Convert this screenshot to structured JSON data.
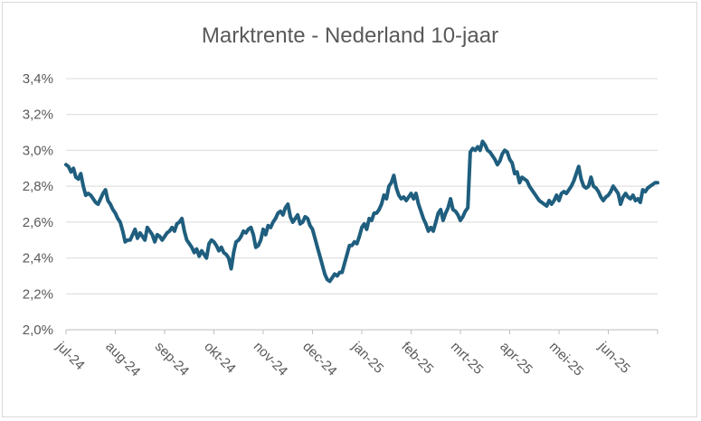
{
  "chart_data": {
    "type": "line",
    "title": "Marktrente - Nederland 10-jaar",
    "xlabel": "",
    "ylabel": "",
    "categories": [
      "jul-24",
      "aug-24",
      "sep-24",
      "okt-24",
      "nov-24",
      "dec-24",
      "jan-25",
      "feb-25",
      "mrt-25",
      "apr-25",
      "mei-25",
      "jun-25"
    ],
    "y_tick_labels": [
      "2,0%",
      "2,2%",
      "2,4%",
      "2,6%",
      "2,8%",
      "3,0%",
      "3,2%",
      "3,4%"
    ],
    "ylim": [
      2.0,
      3.4
    ],
    "grid": true,
    "legend": "none",
    "line_color": "#1f5e7e",
    "series": [
      {
        "x": [
          0,
          0.05,
          0.1,
          0.15,
          0.2,
          0.25,
          0.3,
          0.35,
          0.4,
          0.45,
          0.5,
          0.55,
          0.6,
          0.65,
          0.7,
          0.75,
          0.8,
          0.85,
          0.9,
          0.95,
          1.0,
          1.05,
          1.1,
          1.15,
          1.2,
          1.25,
          1.3,
          1.35,
          1.4,
          1.45,
          1.5,
          1.55,
          1.6,
          1.65,
          1.7,
          1.75,
          1.8,
          1.85,
          1.9,
          1.95,
          2.0,
          2.05,
          2.1,
          2.15,
          2.2,
          2.25,
          2.3,
          2.35,
          2.4,
          2.45,
          2.5,
          2.55,
          2.6,
          2.65,
          2.7,
          2.75,
          2.8,
          2.85,
          2.9,
          2.95,
          3.0,
          3.05,
          3.1,
          3.15,
          3.2,
          3.25,
          3.3,
          3.35,
          3.4,
          3.45,
          3.5,
          3.55,
          3.6,
          3.65,
          3.7,
          3.75,
          3.8,
          3.85,
          3.9,
          3.95,
          4.0,
          4.05,
          4.1,
          4.15,
          4.2,
          4.25,
          4.3,
          4.35,
          4.4,
          4.45,
          4.5,
          4.55,
          4.6,
          4.65,
          4.7,
          4.75,
          4.8,
          4.85,
          4.9,
          4.95,
          5.0,
          5.05,
          5.1,
          5.15,
          5.2,
          5.25,
          5.3,
          5.35,
          5.4,
          5.45,
          5.5,
          5.55,
          5.6,
          5.65,
          5.7,
          5.75,
          5.8,
          5.85,
          5.9,
          5.95,
          6.0,
          6.05,
          6.1,
          6.15,
          6.2,
          6.25,
          6.3,
          6.35,
          6.4,
          6.45,
          6.5,
          6.55,
          6.6,
          6.65,
          6.7,
          6.75,
          6.8,
          6.85,
          6.9,
          6.95,
          7.0,
          7.05,
          7.1,
          7.15,
          7.2,
          7.25,
          7.3,
          7.35,
          7.4,
          7.45,
          7.5,
          7.55,
          7.6,
          7.65,
          7.7,
          7.75,
          7.8,
          7.85,
          7.9,
          7.95,
          8.0,
          8.05,
          8.1,
          8.15,
          8.2,
          8.25,
          8.3,
          8.35,
          8.4,
          8.45,
          8.5,
          8.55,
          8.6,
          8.65,
          8.7,
          8.75,
          8.8,
          8.85,
          8.9,
          8.95,
          9.0,
          9.05,
          9.1,
          9.15,
          9.2,
          9.25,
          9.3,
          9.35,
          9.4,
          9.45,
          9.5,
          9.55,
          9.6,
          9.65,
          9.7,
          9.75,
          9.8,
          9.85,
          9.9,
          9.95,
          10.0,
          10.05,
          10.1,
          10.15,
          10.2,
          10.25,
          10.3,
          10.35,
          10.4,
          10.45,
          10.5,
          10.55,
          10.6,
          10.65,
          10.7,
          10.75,
          10.8,
          10.85,
          10.9,
          10.95,
          11.0,
          11.05,
          11.1,
          11.15,
          11.2,
          11.25,
          11.3,
          11.35,
          11.4,
          11.45,
          11.5,
          11.55,
          11.6,
          11.65,
          11.7,
          11.75,
          11.8,
          11.85,
          11.9,
          11.95,
          12.0
        ],
        "values": [
          2.92,
          2.91,
          2.88,
          2.9,
          2.85,
          2.84,
          2.87,
          2.8,
          2.75,
          2.76,
          2.75,
          2.73,
          2.71,
          2.7,
          2.73,
          2.76,
          2.78,
          2.72,
          2.7,
          2.67,
          2.65,
          2.62,
          2.6,
          2.55,
          2.49,
          2.5,
          2.5,
          2.53,
          2.56,
          2.51,
          2.54,
          2.52,
          2.5,
          2.57,
          2.55,
          2.53,
          2.49,
          2.53,
          2.52,
          2.5,
          2.52,
          2.54,
          2.55,
          2.57,
          2.55,
          2.59,
          2.6,
          2.62,
          2.55,
          2.5,
          2.48,
          2.46,
          2.43,
          2.45,
          2.41,
          2.44,
          2.42,
          2.4,
          2.48,
          2.5,
          2.49,
          2.47,
          2.44,
          2.46,
          2.43,
          2.42,
          2.4,
          2.34,
          2.43,
          2.49,
          2.5,
          2.52,
          2.55,
          2.54,
          2.56,
          2.57,
          2.53,
          2.46,
          2.47,
          2.5,
          2.56,
          2.53,
          2.58,
          2.57,
          2.6,
          2.62,
          2.65,
          2.66,
          2.64,
          2.68,
          2.7,
          2.63,
          2.6,
          2.62,
          2.64,
          2.59,
          2.6,
          2.63,
          2.62,
          2.58,
          2.56,
          2.51,
          2.46,
          2.41,
          2.36,
          2.31,
          2.28,
          2.27,
          2.29,
          2.31,
          2.3,
          2.32,
          2.32,
          2.37,
          2.42,
          2.47,
          2.47,
          2.49,
          2.48,
          2.52,
          2.57,
          2.59,
          2.56,
          2.62,
          2.61,
          2.65,
          2.65,
          2.67,
          2.7,
          2.75,
          2.73,
          2.8,
          2.82,
          2.86,
          2.79,
          2.75,
          2.73,
          2.74,
          2.72,
          2.74,
          2.76,
          2.73,
          2.76,
          2.7,
          2.66,
          2.62,
          2.59,
          2.55,
          2.57,
          2.55,
          2.6,
          2.65,
          2.67,
          2.61,
          2.65,
          2.68,
          2.73,
          2.67,
          2.66,
          2.64,
          2.61,
          2.63,
          2.66,
          2.68,
          2.99,
          3.01,
          3.0,
          3.02,
          3.0,
          3.05,
          3.03,
          3.0,
          2.99,
          2.97,
          2.95,
          2.92,
          2.94,
          2.98,
          3.0,
          2.99,
          2.95,
          2.93,
          2.87,
          2.88,
          2.82,
          2.85,
          2.84,
          2.83,
          2.8,
          2.78,
          2.76,
          2.74,
          2.72,
          2.71,
          2.7,
          2.69,
          2.72,
          2.7,
          2.72,
          2.75,
          2.72,
          2.76,
          2.77,
          2.76,
          2.78,
          2.8,
          2.83,
          2.87,
          2.91,
          2.84,
          2.8,
          2.79,
          2.8,
          2.85,
          2.8,
          2.79,
          2.77,
          2.74,
          2.72,
          2.74,
          2.75,
          2.77,
          2.8,
          2.78,
          2.76,
          2.7,
          2.74,
          2.76,
          2.74,
          2.73,
          2.75,
          2.72,
          2.73,
          2.71,
          2.78,
          2.77,
          2.79,
          2.8,
          2.81,
          2.82,
          2.82
        ]
      }
    ]
  }
}
